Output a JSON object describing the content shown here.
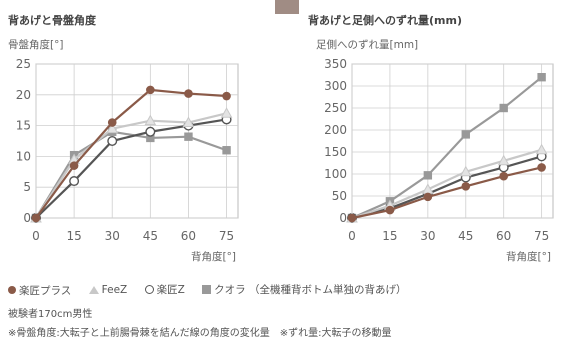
{
  "chart_data": [
    {
      "type": "line",
      "title": "背あげと骨盤角度",
      "ylabel": "骨盤角度[°]",
      "xlabel": "背角度[°]",
      "x": [
        0,
        15,
        30,
        45,
        60,
        75
      ],
      "xticks": [
        "0",
        "15",
        "30",
        "45",
        "60",
        "75"
      ],
      "ylim": [
        0,
        25
      ],
      "yticks": [
        "0",
        "5",
        "10",
        "15",
        "20",
        "25"
      ],
      "grid": true,
      "series": [
        {
          "name": "楽匠プラス",
          "marker": "circle-filled",
          "color": "#8a5a48",
          "values": [
            0,
            8.5,
            15.5,
            20.8,
            20.2,
            19.8
          ]
        },
        {
          "name": "FeeZ",
          "marker": "triangle",
          "color": "#c8c8c8",
          "values": [
            0,
            9.5,
            14.5,
            15.8,
            15.5,
            17.0
          ]
        },
        {
          "name": "楽匠Z",
          "marker": "circle-open",
          "color": "#555555",
          "values": [
            0,
            6.0,
            12.5,
            14.0,
            15.0,
            16.0
          ]
        },
        {
          "name": "クオラ",
          "marker": "square",
          "color": "#999999",
          "values": [
            0,
            10.2,
            14.0,
            13.0,
            13.2,
            11.0
          ]
        }
      ]
    },
    {
      "type": "line",
      "title": "背あげと足側へのずれ量(mm)",
      "ylabel": "足側へのずれ量[mm]",
      "xlabel": "背角度[°]",
      "x": [
        0,
        15,
        30,
        45,
        60,
        75
      ],
      "xticks": [
        "0",
        "15",
        "30",
        "45",
        "60",
        "75"
      ],
      "ylim": [
        0,
        350
      ],
      "yticks": [
        "0",
        "50",
        "100",
        "150",
        "200",
        "250",
        "300",
        "350"
      ],
      "grid": true,
      "series": [
        {
          "name": "楽匠プラス",
          "marker": "circle-filled",
          "color": "#8a5a48",
          "values": [
            0,
            18,
            48,
            72,
            95,
            115
          ]
        },
        {
          "name": "FeeZ",
          "marker": "triangle",
          "color": "#c8c8c8",
          "values": [
            0,
            28,
            65,
            105,
            130,
            155
          ]
        },
        {
          "name": "楽匠Z",
          "marker": "circle-open",
          "color": "#555555",
          "values": [
            0,
            22,
            55,
            92,
            115,
            140
          ]
        },
        {
          "name": "クオラ",
          "marker": "square",
          "color": "#999999",
          "values": [
            0,
            38,
            97,
            190,
            250,
            320
          ]
        }
      ]
    }
  ],
  "legend": {
    "items": [
      {
        "label": "楽匠プラス"
      },
      {
        "label": "FeeZ"
      },
      {
        "label": "楽匠Z"
      },
      {
        "label": "クオラ （全機種背ボトム単独の背あげ）"
      }
    ]
  },
  "notes": {
    "subject": "被験者170cm男性",
    "footnote": "※骨盤角度:大転子と上前腸骨棘を結んだ線の角度の変化量　※ずれ量:大転子の移動量"
  }
}
